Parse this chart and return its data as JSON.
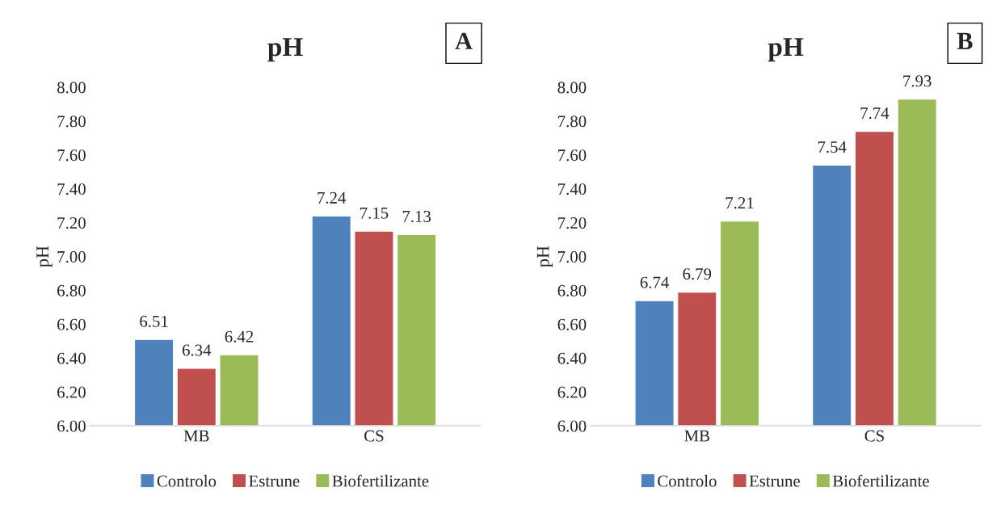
{
  "chart_data": [
    {
      "type": "bar",
      "title": "pH",
      "ylabel": "pH",
      "categories": [
        "MB",
        "CS"
      ],
      "series": [
        {
          "name": "Controlo",
          "color": "#4f81bd",
          "values": [
            6.51,
            7.24
          ]
        },
        {
          "name": "Estrune",
          "color": "#c0504d",
          "values": [
            6.34,
            7.15
          ]
        },
        {
          "name": "Biofertilizante",
          "color": "#9bbb59",
          "values": [
            6.42,
            7.13
          ]
        }
      ],
      "ylim": [
        6,
        8
      ],
      "yticks": [
        {
          "value": 6,
          "label": "6.00"
        },
        {
          "value": 6.2,
          "label": "6.20"
        },
        {
          "value": 6.4,
          "label": "6.40"
        },
        {
          "value": 6.6,
          "label": "6.60"
        },
        {
          "value": 6.8,
          "label": "6.80"
        },
        {
          "value": 7,
          "label": "7.00"
        },
        {
          "value": 7.2,
          "label": "7.20"
        },
        {
          "value": 7.4,
          "label": "7.40"
        },
        {
          "value": 7.6,
          "label": "7.60"
        },
        {
          "value": 7.8,
          "label": "7.80"
        },
        {
          "value": 8,
          "label": "8.00"
        }
      ],
      "data_labels": true,
      "legend": "bottom",
      "grid": false,
      "annotations": [
        "A"
      ]
    },
    {
      "type": "bar",
      "title": "pH",
      "ylabel": "pH",
      "categories": [
        "MB",
        "CS"
      ],
      "series": [
        {
          "name": "Controlo",
          "color": "#4f81bd",
          "values": [
            6.74,
            7.54
          ]
        },
        {
          "name": "Estrune",
          "color": "#c0504d",
          "values": [
            6.79,
            7.74
          ]
        },
        {
          "name": "Biofertilizante",
          "color": "#9bbb59",
          "values": [
            7.21,
            7.93
          ]
        }
      ],
      "ylim": [
        6,
        8
      ],
      "yticks": [
        {
          "value": 6,
          "label": "6.00"
        },
        {
          "value": 6.2,
          "label": "6.20"
        },
        {
          "value": 6.4,
          "label": "6.40"
        },
        {
          "value": 6.6,
          "label": "6.60"
        },
        {
          "value": 6.8,
          "label": "6.80"
        },
        {
          "value": 7,
          "label": "7.00"
        },
        {
          "value": 7.2,
          "label": "7.20"
        },
        {
          "value": 7.4,
          "label": "7.40"
        },
        {
          "value": 7.6,
          "label": "7.60"
        },
        {
          "value": 7.8,
          "label": "7.80"
        },
        {
          "value": 8,
          "label": "8.00"
        }
      ],
      "data_labels": true,
      "legend": "bottom",
      "grid": false,
      "annotations": [
        "B"
      ]
    }
  ]
}
